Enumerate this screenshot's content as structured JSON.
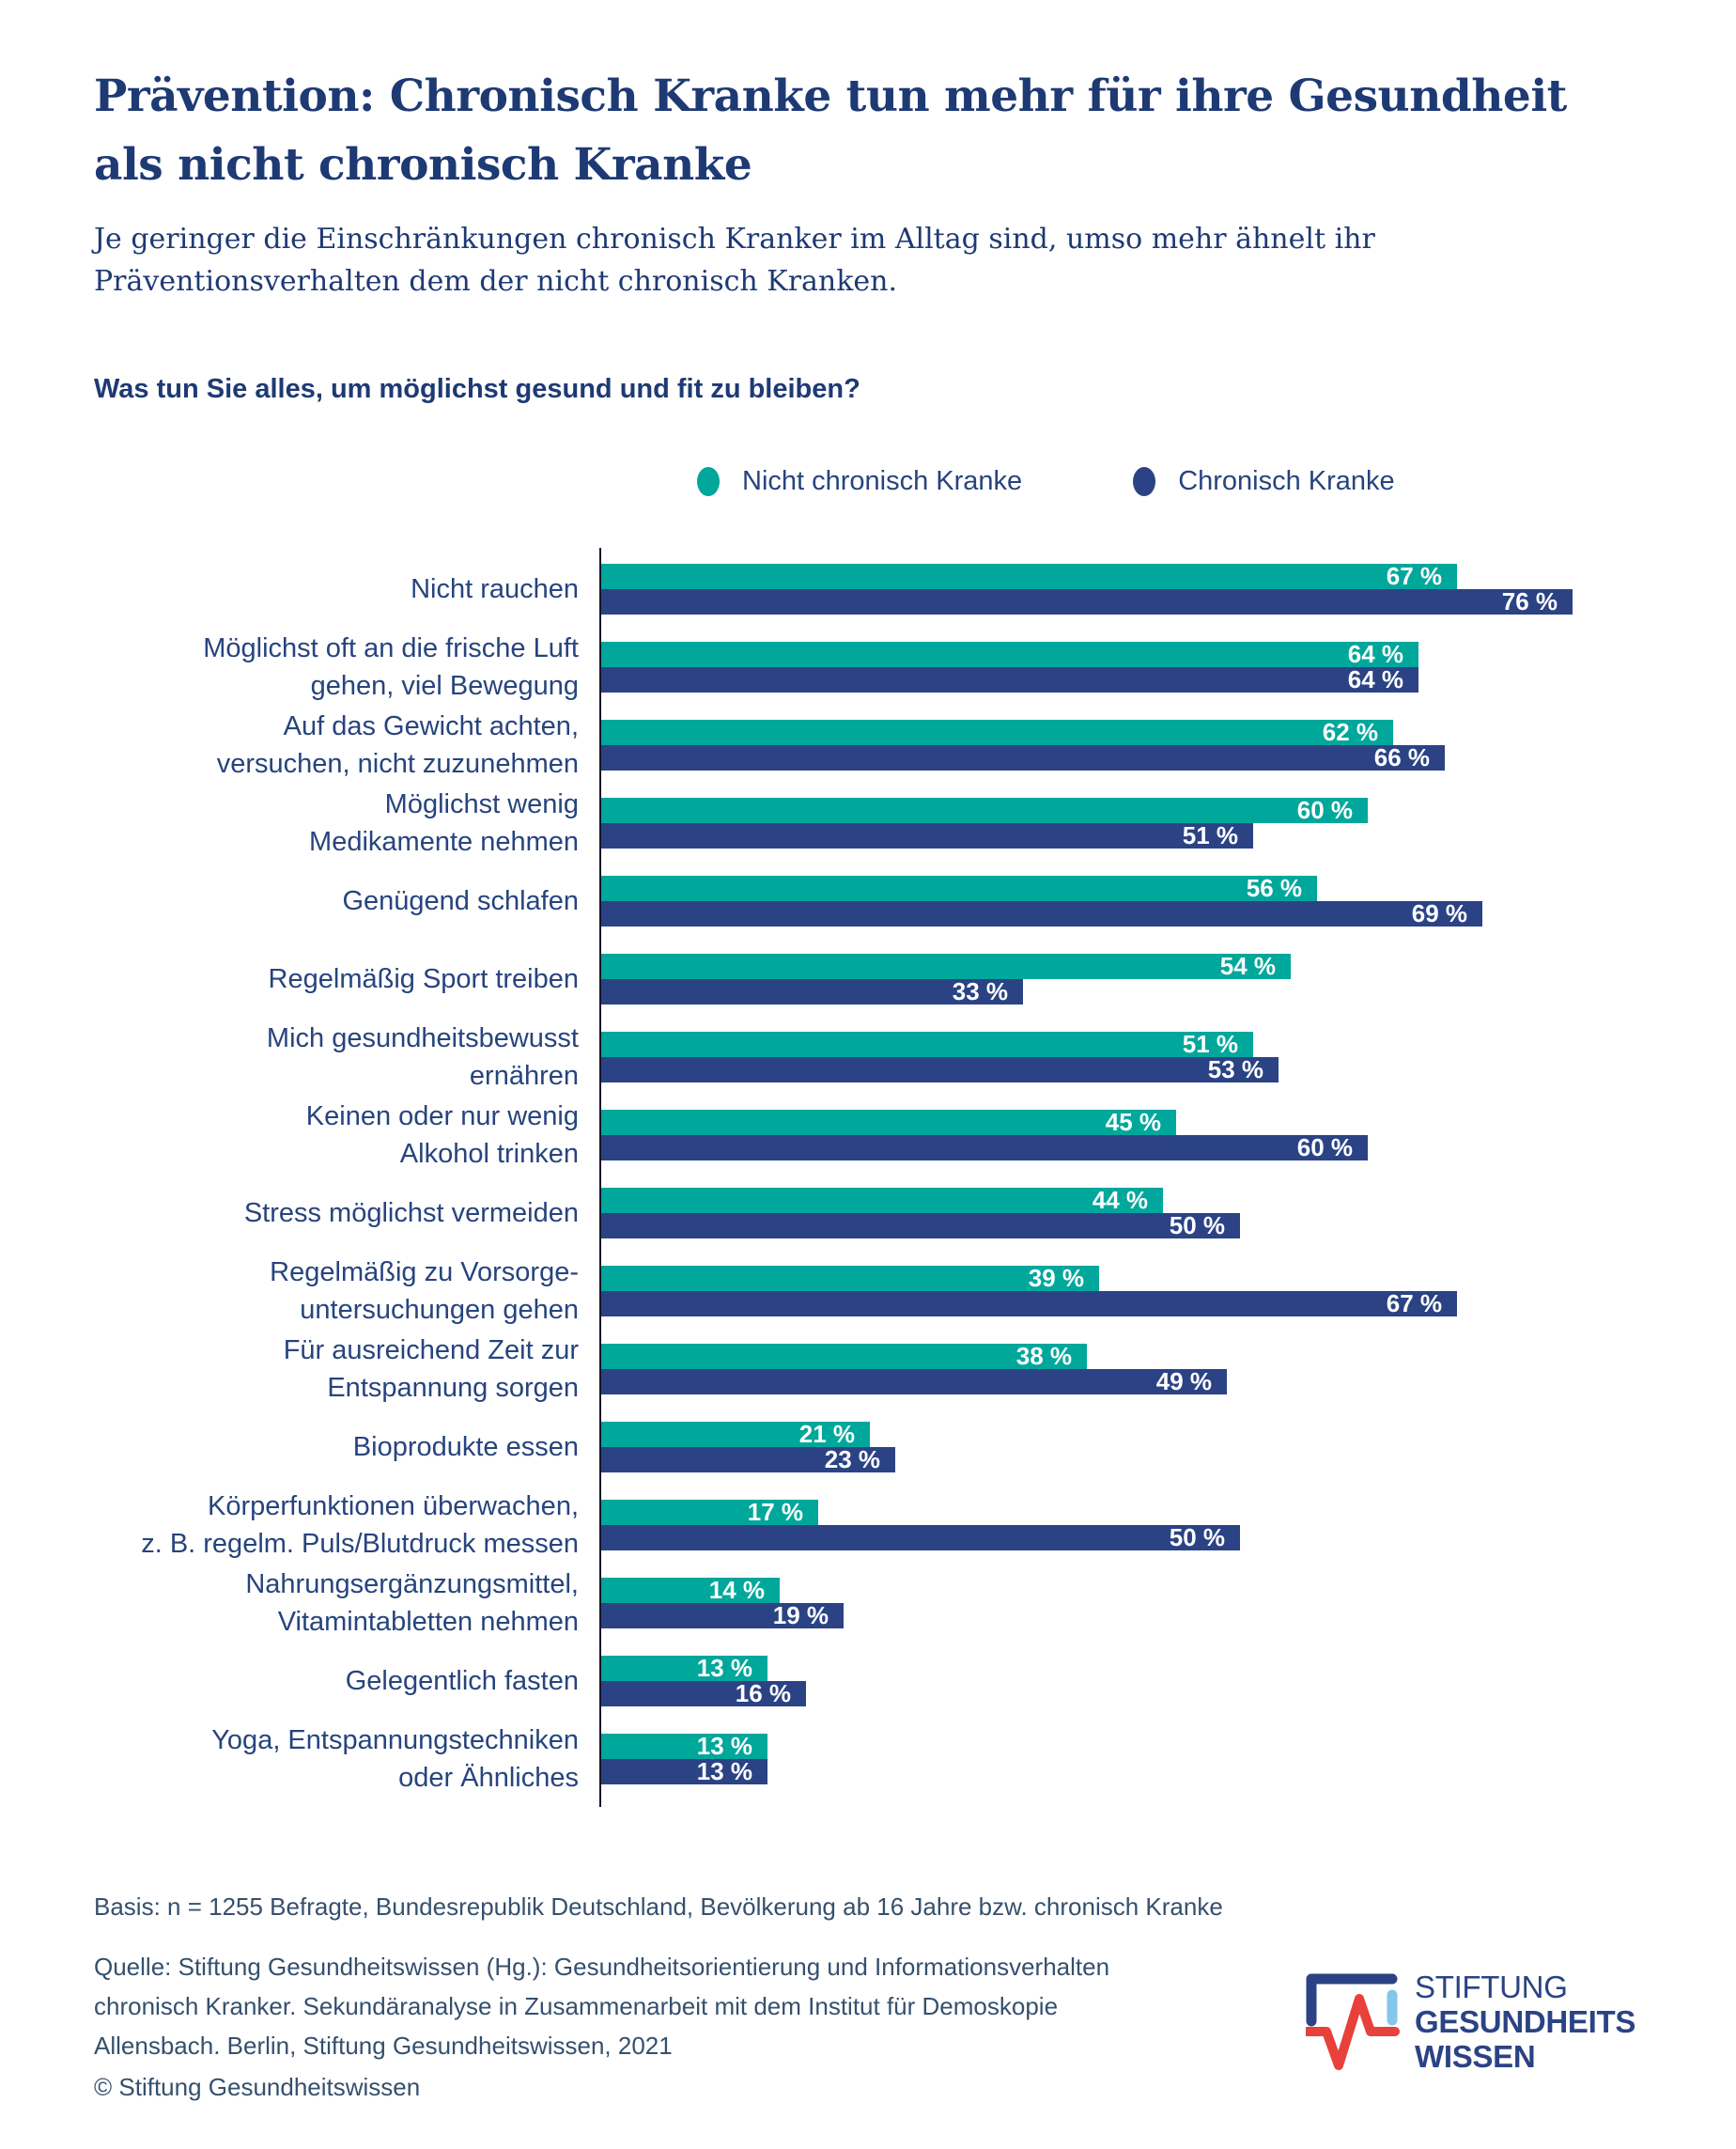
{
  "header": {
    "title_lines": [
      "Prävention: Chronisch Kranke tun mehr für ihre Gesundheit",
      "als nicht chronisch Kranke"
    ],
    "subtitle_lines": [
      "Je geringer die Einschränkungen chronisch Kranker im Alltag sind, umso mehr ähnelt ihr",
      "Präventionsverhalten dem der nicht chronisch Kranken."
    ],
    "question": "Was tun Sie alles, um möglichst gesund und fit zu bleiben?"
  },
  "legend": [
    {
      "label": "Nicht chronisch Kranke",
      "color": "#00a79b"
    },
    {
      "label": "Chronisch Kranke",
      "color": "#2b4384"
    }
  ],
  "chart_data": {
    "type": "bar",
    "orientation": "horizontal",
    "unit": "%",
    "xlim": [
      0,
      100
    ],
    "grid": false,
    "legend_position": "top",
    "categories": [
      [
        "Nicht rauchen"
      ],
      [
        "Möglichst oft an die frische Luft",
        "gehen, viel Bewegung"
      ],
      [
        "Auf das Gewicht achten,",
        "versuchen, nicht zuzunehmen"
      ],
      [
        "Möglichst wenig",
        "Medikamente nehmen"
      ],
      [
        "Genügend schlafen"
      ],
      [
        "Regelmäßig Sport treiben"
      ],
      [
        "Mich gesundheitsbewusst",
        "ernähren"
      ],
      [
        "Keinen oder nur wenig",
        "Alkohol trinken"
      ],
      [
        "Stress möglichst vermeiden"
      ],
      [
        "Regelmäßig zu Vorsorge-",
        "untersuchungen gehen"
      ],
      [
        "Für ausreichend Zeit zur",
        "Entspannung sorgen"
      ],
      [
        "Bioprodukte essen"
      ],
      [
        "Körperfunktionen überwachen,",
        "z. B. regelm. Puls/Blutdruck messen"
      ],
      [
        "Nahrungsergänzungsmittel,",
        "Vitamintabletten nehmen"
      ],
      [
        "Gelegentlich fasten"
      ],
      [
        "Yoga, Entspannungstechniken",
        "oder Ähnliches"
      ]
    ],
    "series": [
      {
        "name": "Nicht chronisch Kranke",
        "color": "#00a79b",
        "values": [
          67,
          64,
          62,
          60,
          56,
          54,
          51,
          45,
          44,
          39,
          38,
          21,
          17,
          14,
          13,
          13
        ]
      },
      {
        "name": "Chronisch Kranke",
        "color": "#2b4384",
        "values": [
          76,
          64,
          66,
          51,
          69,
          33,
          53,
          60,
          50,
          67,
          49,
          23,
          50,
          19,
          16,
          13
        ]
      }
    ],
    "value_label_format": "{v} %"
  },
  "footer": {
    "basis": "Basis: n = 1255 Befragte, Bundesrepublik Deutschland, Bevölkerung ab 16 Jahre bzw. chronisch Kranke",
    "quelle_lines": [
      "Quelle: Stiftung Gesundheitswissen (Hg.): Gesundheitsorientierung und Informationsverhalten",
      "chronisch Kranker. Sekundäranalyse in Zusammenarbeit mit dem Institut für Demoskopie",
      "Allensbach. Berlin, Stiftung Gesundheitswissen, 2021"
    ],
    "copyright": "© Stiftung Gesundheitswissen"
  },
  "logo": {
    "line1": "STIFTUNG",
    "line2": "GESUNDHEITS",
    "line3": "WISSEN",
    "colors": {
      "navy": "#2b4384",
      "lightblue": "#84c7ea",
      "red": "#e8403a"
    }
  }
}
